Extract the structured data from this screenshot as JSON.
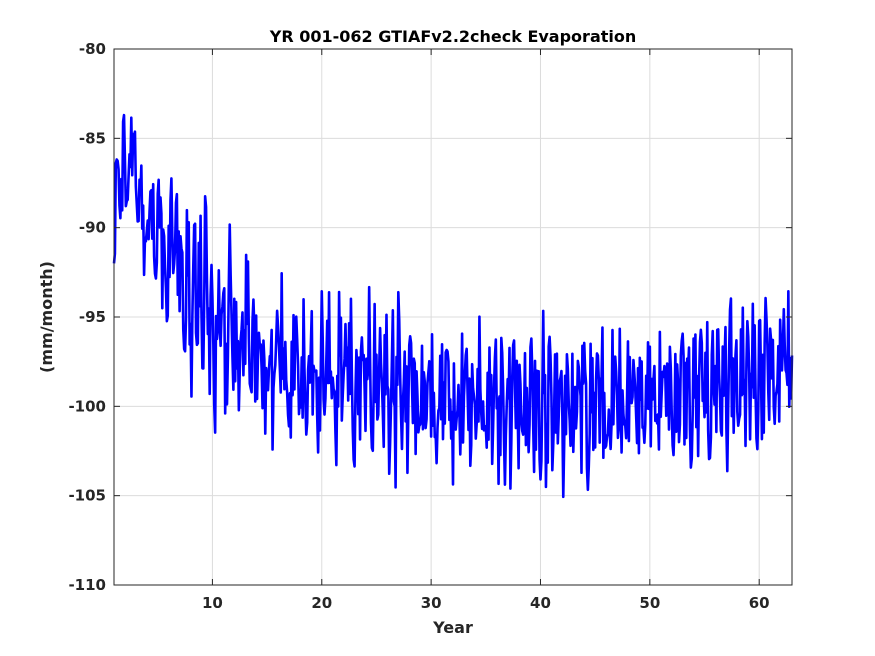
{
  "chart_data": {
    "type": "line",
    "title": "YR 001-062 GTIAFv2.2check Evaporation",
    "xlabel": "Year",
    "ylabel": "(mm/month)",
    "xlim": [
      1,
      63
    ],
    "ylim": [
      -110,
      -80
    ],
    "xticks": [
      10,
      20,
      30,
      40,
      50,
      60
    ],
    "yticks": [
      -110,
      -105,
      -100,
      -95,
      -90,
      -85,
      -80
    ],
    "grid": true,
    "series": [
      {
        "color": "#0000ff",
        "values": [
          -92.0,
          -86.0,
          -85.5,
          -88.8,
          -86.9,
          -84.6,
          -89.0,
          -88.9,
          -86.3,
          -84.6,
          -84.9,
          -87.9,
          -88.4,
          -87.7,
          -89.5,
          -90.6,
          -92.0,
          -90.0,
          -86.9,
          -89.8,
          -91.2,
          -91.8,
          -89.5,
          -89.0,
          -91.2,
          -93.0,
          -92.5,
          -91.7,
          -89.9,
          -88.9,
          -93.2,
          -91.2,
          -92.0,
          -90.2,
          -95.5,
          -93.5,
          -91.1,
          -93.4,
          -96.2,
          -96.2,
          -92.1,
          -95.5,
          -93.5,
          -92.5,
          -95.0,
          -90.1,
          -92.5,
          -96.5,
          -95.5,
          -97.5,
          -98.5,
          -96.0,
          -94.0,
          -92.5,
          -95.5,
          -97.3,
          -98.5,
          -93.0,
          -94.0,
          -96.5,
          -97.5,
          -95.5,
          -98.0,
          -97.7,
          -96.0,
          -95.5,
          -94.0,
          -96.5,
          -97.5,
          -95.0,
          -96.5,
          -98.0,
          -98.5,
          -97.5,
          -99.0,
          -99.7,
          -96.8,
          -95.8,
          -98.0,
          -100.0,
          -96.5,
          -97.0,
          -99.0,
          -95.5,
          -98.0,
          -96.5,
          -99.0,
          -100.5,
          -98.0,
          -97.5,
          -96.0,
          -99.5,
          -100.0,
          -97.5,
          -96.5,
          -100.2,
          -98.5,
          -98.0,
          -96.7,
          -99.5,
          -99.0,
          -100.5,
          -98.0,
          -95.5,
          -99.5,
          -99.0,
          -97.0,
          -96.0,
          -101.0,
          -98.5,
          -100.0,
          -97.5,
          -96.0,
          -99.0,
          -100.5,
          -96.5,
          -97.0,
          -97.5,
          -99.0,
          -100.0,
          -98.5,
          -99.5,
          -97.0,
          -101.5,
          -98.0,
          -98.5,
          -96.5,
          -97.5,
          -100.5,
          -97.3,
          -99.5,
          -98.0,
          -100.8,
          -99.0,
          -97.5,
          -98.5,
          -100.0,
          -99.5,
          -97.5,
          -101.5,
          -98.0,
          -96.5,
          -99.0,
          -101.0,
          -97.5,
          -100.5,
          -98.0,
          -99.0,
          -97.5,
          -101.5,
          -99.5,
          -98.5,
          -100.5,
          -97.5,
          -100.0,
          -101.5,
          -98.5,
          -99.0,
          -100.5,
          -102.0,
          -98.5,
          -99.5,
          -97.5,
          -101.0,
          -99.0,
          -98.0,
          -100.5,
          -102.5,
          -99.0,
          -100.0,
          -98.5,
          -101.5,
          -99.5,
          -100.5,
          -97.5,
          -100.0,
          -101.0,
          -99.5,
          -98.0,
          -101.5,
          -99.0,
          -98.5,
          -100.5,
          -102.5,
          -100.0,
          -98.5,
          -99.5,
          -101.5,
          -98.0,
          -100.0,
          -102.0,
          -99.5,
          -97.5,
          -101.0,
          -100.5,
          -98.5,
          -102.0,
          -99.0,
          -100.5,
          -98.0,
          -101.5,
          -99.5,
          -97.5,
          -100.0,
          -101.5,
          -100.0,
          -99.0,
          -102.5,
          -98.5,
          -100.5,
          -99.5,
          -101.0,
          -98.0,
          -100.0,
          -102.0,
          -99.5,
          -98.5,
          -101.5,
          -100.0,
          -99.0,
          -97.5,
          -101.0,
          -102.5,
          -99.5,
          -100.5,
          -98.5,
          -100.0,
          -101.5,
          -99.0,
          -98.5,
          -101.5,
          -100.0,
          -97.0,
          -99.5,
          -102.0,
          -100.5,
          -98.5,
          -99.5,
          -101.5,
          -99.0,
          -100.0,
          -98.0,
          -101.0,
          -99.5,
          -100.5,
          -102.0,
          -98.5,
          -100.0,
          -99.0,
          -101.5,
          -98.5,
          -100.5,
          -99.0,
          -101.0,
          -97.5,
          -100.5,
          -99.5,
          -98.5,
          -101.0,
          -100.0,
          -98.0,
          -99.5,
          -101.5,
          -100.0,
          -98.5,
          -99.0,
          -100.5,
          -97.5,
          -100.0,
          -101.0,
          -99.0,
          -98.0,
          -100.5,
          -99.5,
          -97.5,
          -99.0,
          -100.5,
          -98.5,
          -99.5,
          -101.0,
          -98.0,
          -99.5,
          -100.0,
          -97.5,
          -99.0,
          -100.5,
          -98.0,
          -99.5,
          -98.5,
          -100.5,
          -99.0,
          -97.0,
          -100.0,
          -98.5,
          -99.5,
          -101.0,
          -97.5,
          -99.0,
          -98.0,
          -100.0,
          -98.5,
          -99.5,
          -97.0,
          -100.5,
          -98.0,
          -96.5,
          -99.5,
          -98.5,
          -100.0,
          -97.5,
          -99.0,
          -96.5,
          -99.5,
          -98.0,
          -100.5,
          -97.0,
          -98.5,
          -97.5,
          -100.0,
          -96.0,
          -98.5,
          -99.5,
          -97.0,
          -98.0,
          -99.0,
          -96.5,
          -98.5,
          -97.5,
          -99.5,
          -96.0,
          -98.0,
          -97.0,
          -99.0,
          -96.5,
          -98.5,
          -97.5
        ],
        "notes_range": [
          -105.8,
          -83.7
        ]
      }
    ]
  }
}
